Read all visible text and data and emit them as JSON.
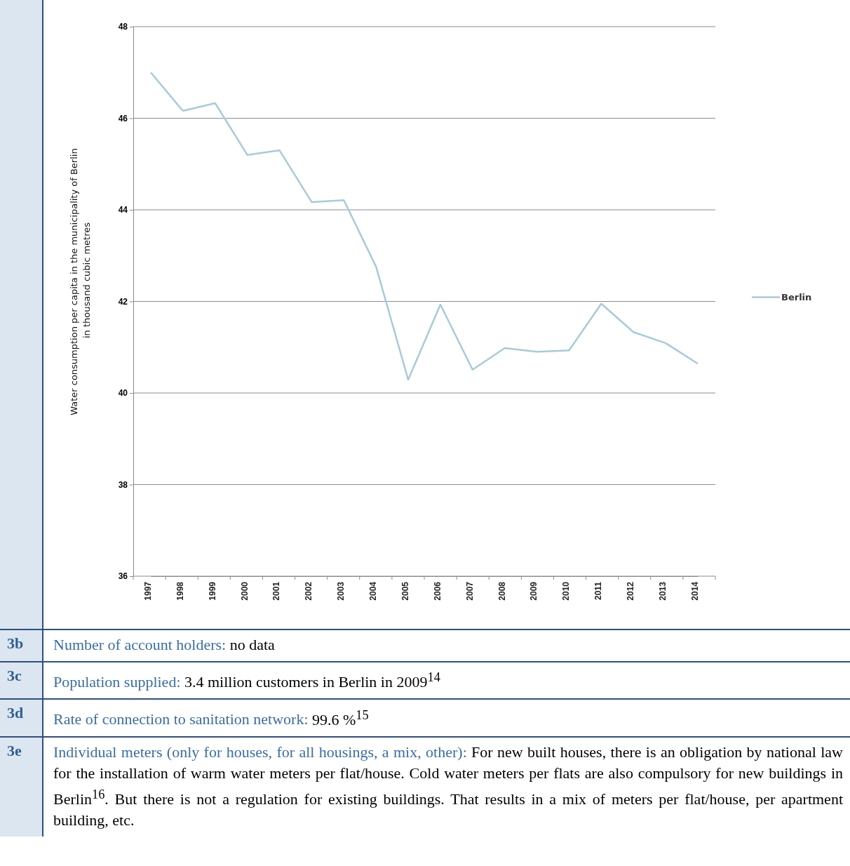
{
  "chart_data": {
    "type": "line",
    "ylabel": "Water consumption per capita in the municipality of Berlin in thousand cubic metres",
    "categories": [
      "1997",
      "1998",
      "1999",
      "2000",
      "2001",
      "2002",
      "2003",
      "2004",
      "2005",
      "2006",
      "2007",
      "2008",
      "2009",
      "2010",
      "2011",
      "2012",
      "2013",
      "2014"
    ],
    "series": [
      {
        "name": "Berlin",
        "color": "#a8cbd8",
        "values": [
          47.0,
          46.16,
          46.33,
          45.2,
          45.3,
          44.17,
          44.21,
          42.76,
          40.29,
          41.93,
          40.51,
          40.98,
          40.9,
          40.93,
          41.95,
          41.33,
          41.09,
          40.64
        ]
      }
    ],
    "ylim": [
      36,
      48
    ],
    "yticks": [
      36,
      38,
      40,
      42,
      44,
      46,
      48
    ],
    "grid": "y",
    "legend": "right",
    "marker": "none",
    "line_style": "solid",
    "annotations": [
      "3b",
      "Number of account holders:",
      "no data",
      "3c",
      "Population supplied:",
      "3.4 million customers in Berlin in 2009$^{14}$",
      "3d",
      "Rate of connection to sanitation network:",
      "99.6 %$^{15}$",
      "3e",
      "Individual meters (only for houses, for all housings, a mix, other):",
      "For new built houses, there is an obligation by national law for the installation of warm water meters per flat/house. Cold water meters per flats are also compulsory for new buildings in Berlin$^{16}$. But there is not a regulation for existing buildings. That results in a mix of meters per flat/house, per apartment building, etc."
    ]
  }
}
